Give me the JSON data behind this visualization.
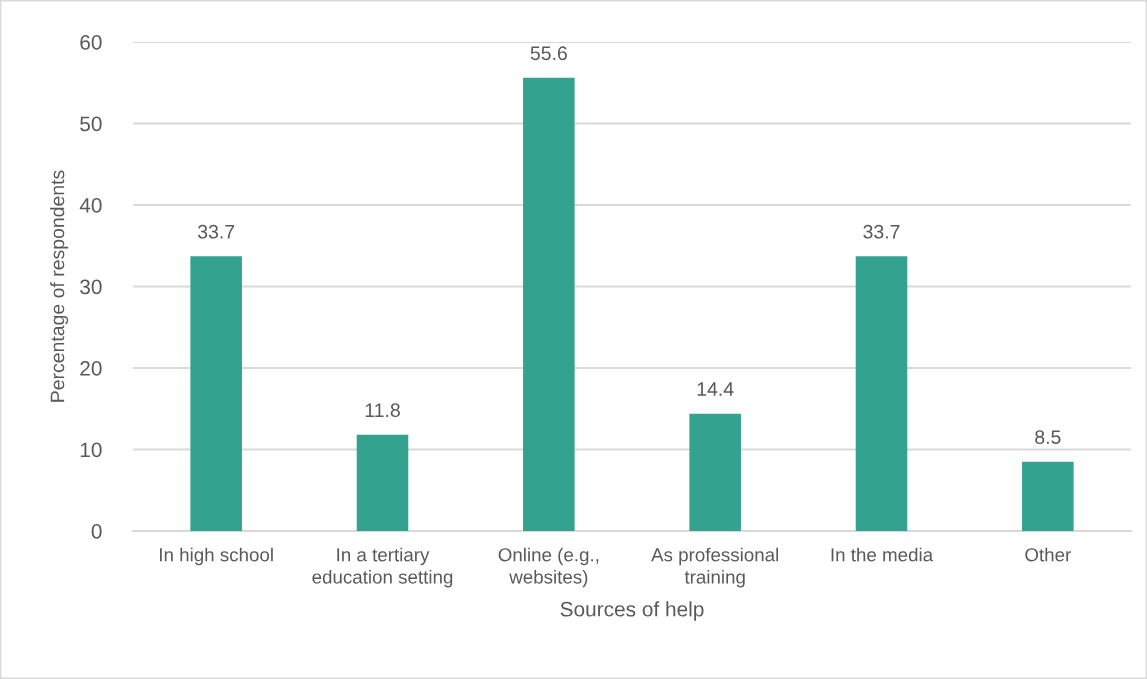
{
  "chart_data": {
    "type": "bar",
    "categories": [
      "In high school",
      "In a tertiary\neducation setting",
      "Online (e.g.,\nwebsites)",
      "As professional\ntraining",
      "In the media",
      "Other"
    ],
    "values": [
      33.7,
      11.8,
      55.6,
      14.4,
      33.7,
      8.5
    ],
    "color": "#33a390",
    "xlabel": "Sources of help",
    "ylabel": "Percentage of respondents",
    "ylim": [
      0,
      60
    ],
    "yticks": [
      0,
      10,
      20,
      30,
      40,
      50,
      60
    ],
    "grid": "y",
    "data_labels": true,
    "legend": false
  }
}
